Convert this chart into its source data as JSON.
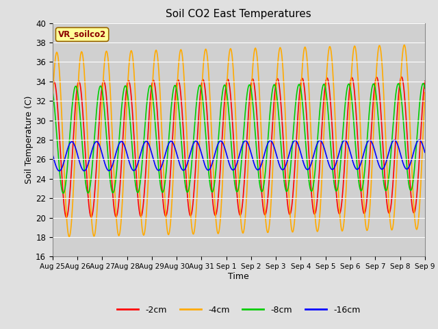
{
  "title": "Soil CO2 East Temperatures",
  "xlabel": "Time",
  "ylabel": "Soil Temperature (C)",
  "ylim": [
    16,
    40
  ],
  "yticks": [
    16,
    18,
    20,
    22,
    24,
    26,
    28,
    30,
    32,
    34,
    36,
    38,
    40
  ],
  "x_labels": [
    "Aug 25",
    "Aug 26",
    "Aug 27",
    "Aug 28",
    "Aug 29",
    "Aug 30",
    "Aug 31",
    "Sep 1",
    "Sep 2",
    "Sep 3",
    "Sep 4",
    "Sep 5",
    "Sep 6",
    "Sep 7",
    "Sep 8",
    "Sep 9"
  ],
  "legend_label": "VR_soilco2",
  "series_labels": [
    "-2cm",
    "-4cm",
    "-8cm",
    "-16cm"
  ],
  "series_colors": [
    "#ff0000",
    "#ffaa00",
    "#00cc00",
    "#0000ff"
  ],
  "fig_bg_color": "#e0e0e0",
  "plot_bg_color": "#d0d0d0",
  "n_days": 15,
  "amp_2": 7.0,
  "mean_2": 27.0,
  "phase_2": 1.2,
  "amp_4": 9.5,
  "mean_4": 27.5,
  "phase_4": 0.5,
  "amp_8": 5.5,
  "mean_8": 28.0,
  "phase_8": 2.0,
  "amp_16": 1.5,
  "mean_16": 26.3,
  "phase_16": 3.0,
  "n_pts": 720
}
